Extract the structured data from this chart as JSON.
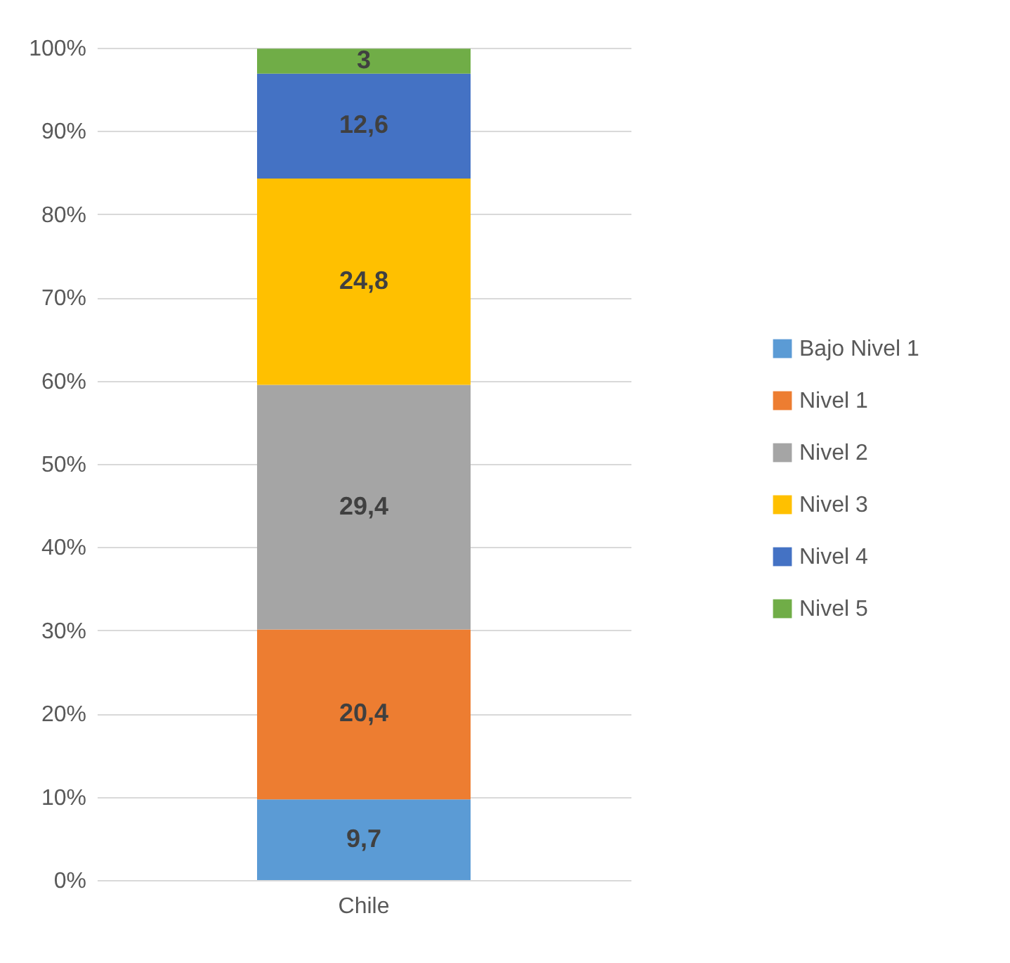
{
  "chart_data": {
    "type": "bar",
    "stacked": true,
    "categories": [
      "Chile"
    ],
    "series": [
      {
        "name": "Bajo Nivel 1",
        "color": "#5b9bd5",
        "values": [
          9.7
        ],
        "value_labels": [
          "9,7"
        ]
      },
      {
        "name": "Nivel 1",
        "color": "#ed7d31",
        "values": [
          20.4
        ],
        "value_labels": [
          "20,4"
        ]
      },
      {
        "name": "Nivel 2",
        "color": "#a5a5a5",
        "values": [
          29.4
        ],
        "value_labels": [
          "29,4"
        ]
      },
      {
        "name": "Nivel 3",
        "color": "#ffc000",
        "values": [
          24.8
        ],
        "value_labels": [
          "24,8"
        ]
      },
      {
        "name": "Nivel 4",
        "color": "#4472c4",
        "values": [
          12.6
        ],
        "value_labels": [
          "12,6"
        ]
      },
      {
        "name": "Nivel 5",
        "color": "#70ad47",
        "values": [
          3
        ],
        "value_labels": [
          "3"
        ]
      }
    ],
    "ylim": [
      0,
      100
    ],
    "yticks": [
      {
        "value": 0,
        "label": "0%"
      },
      {
        "value": 10,
        "label": "10%"
      },
      {
        "value": 20,
        "label": "20%"
      },
      {
        "value": 30,
        "label": "30%"
      },
      {
        "value": 40,
        "label": "40%"
      },
      {
        "value": 50,
        "label": "50%"
      },
      {
        "value": 60,
        "label": "60%"
      },
      {
        "value": 70,
        "label": "70%"
      },
      {
        "value": 80,
        "label": "80%"
      },
      {
        "value": 90,
        "label": "90%"
      },
      {
        "value": 100,
        "label": "100%"
      }
    ],
    "grid": "y",
    "legend": "right"
  }
}
